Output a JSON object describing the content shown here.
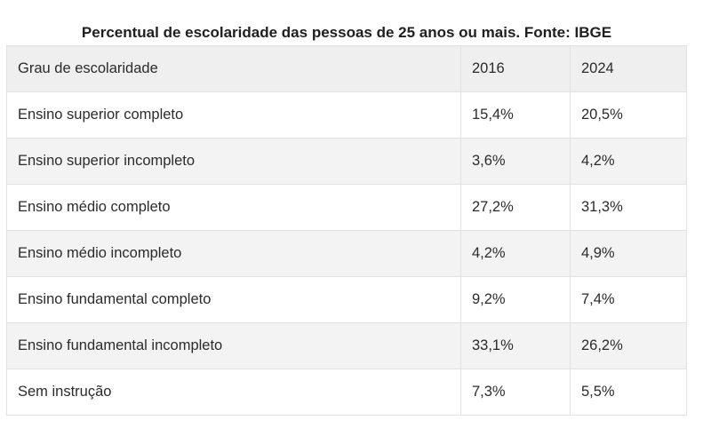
{
  "caption": "Percentual de escolaridade das pessoas de 25 anos ou mais. Fonte: IBGE",
  "table": {
    "headers": [
      "Grau de escolaridade",
      "2016",
      "2024"
    ],
    "rows": [
      [
        "Ensino superior completo",
        "15,4%",
        "20,5%"
      ],
      [
        "Ensino superior incompleto",
        "3,6%",
        "4,2%"
      ],
      [
        "Ensino médio completo",
        "27,2%",
        "31,3%"
      ],
      [
        "Ensino médio incompleto",
        "4,2%",
        "4,9%"
      ],
      [
        "Ensino fundamental completo",
        "9,2%",
        "7,4%"
      ],
      [
        "Ensino fundamental incompleto",
        "33,1%",
        "26,2%"
      ],
      [
        "Sem instrução",
        "7,3%",
        "5,5%"
      ]
    ]
  }
}
